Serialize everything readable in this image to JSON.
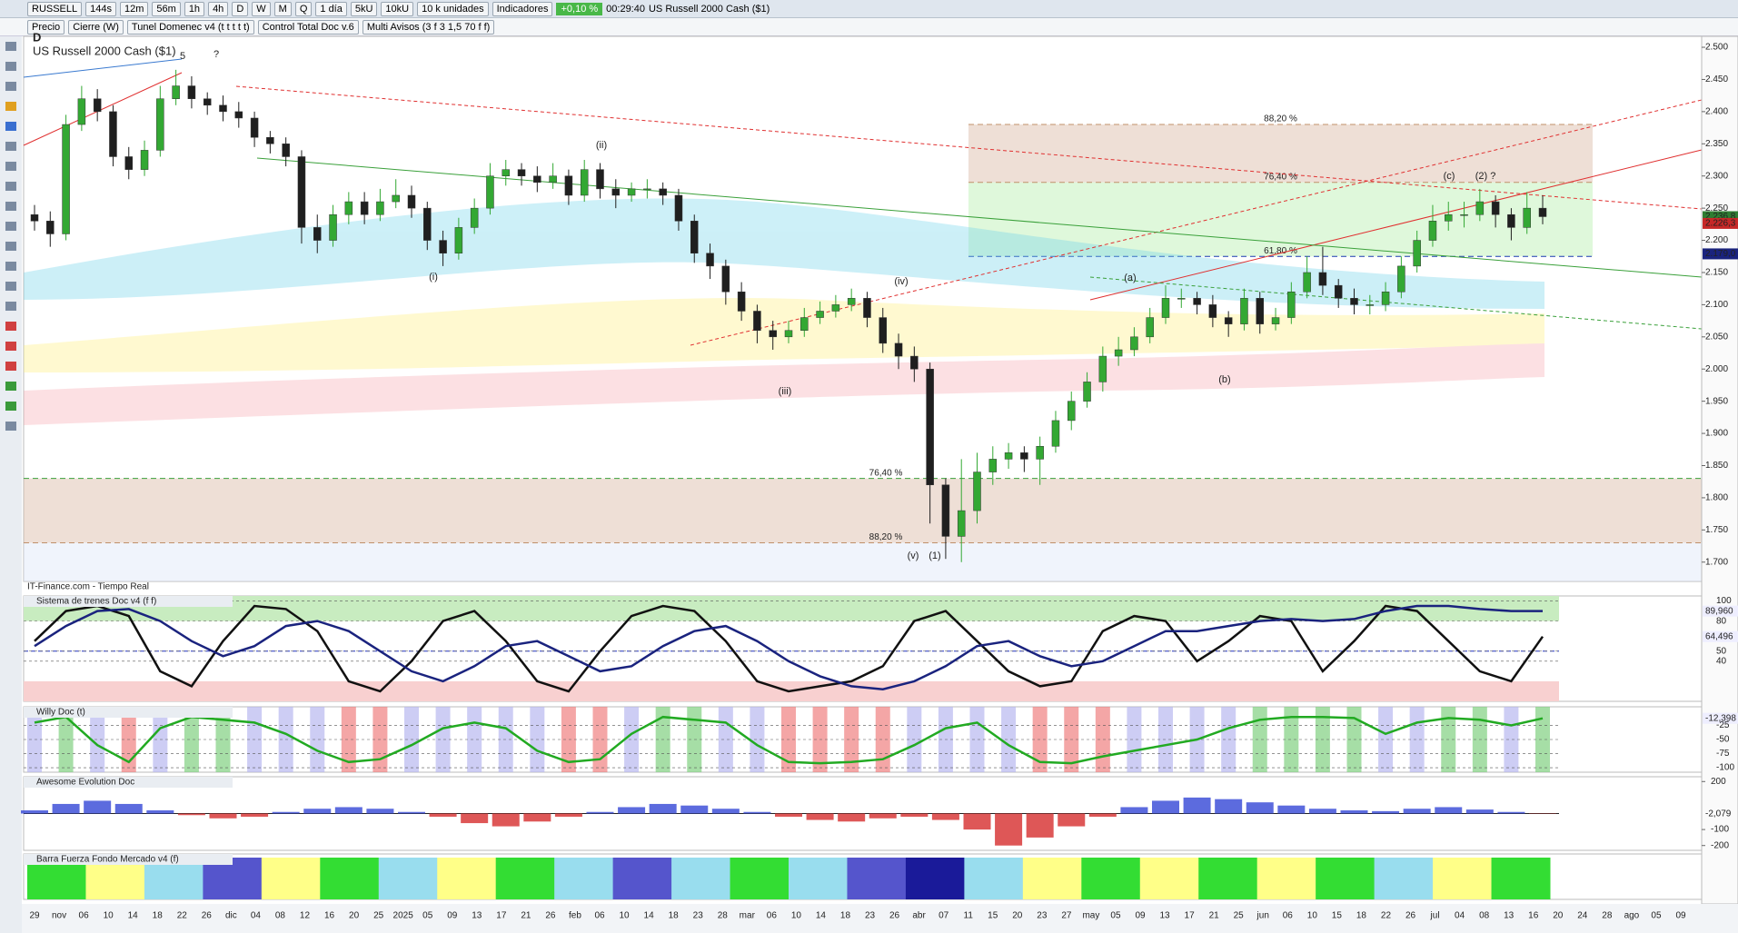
{
  "toolbar": {
    "symbol": "RUSSELL",
    "timeframes": [
      "144s",
      "12m",
      "56m",
      "1h",
      "4h",
      "D",
      "W",
      "M",
      "Q"
    ],
    "period": "1 día",
    "units": [
      "5kU",
      "10kU"
    ],
    "units_menu": "10 k unidades",
    "indicators": "Indicadores",
    "change": "+0,10 %",
    "time": "00:29:40",
    "instrument": "US Russell 2000 Cash ($1)"
  },
  "legend_bar": [
    "Precio",
    "Cierre (W)",
    "Tunel Domenec v4 (t t t t t)",
    "Control Total Doc v.6",
    "Multi Avisos (3 f 3 1,5 70 f f)"
  ],
  "chart_data": [
    {
      "type": "candlestick",
      "period": "D",
      "title": "US Russell 2000 Cash ($1)",
      "source": "IT-Finance.com - Tiempo Real",
      "up_color": "#33a833",
      "down_color": "#1f1f1f",
      "candles": [
        [
          2240,
          2255,
          2215,
          2230
        ],
        [
          2230,
          2245,
          2190,
          2210
        ],
        [
          2210,
          2395,
          2200,
          2380
        ],
        [
          2380,
          2440,
          2370,
          2420
        ],
        [
          2420,
          2435,
          2385,
          2400
        ],
        [
          2400,
          2410,
          2315,
          2330
        ],
        [
          2330,
          2345,
          2295,
          2310
        ],
        [
          2310,
          2355,
          2300,
          2340
        ],
        [
          2340,
          2440,
          2330,
          2420
        ],
        [
          2420,
          2465,
          2410,
          2440
        ],
        [
          2440,
          2455,
          2405,
          2420
        ],
        [
          2420,
          2430,
          2395,
          2410
        ],
        [
          2410,
          2425,
          2385,
          2400
        ],
        [
          2400,
          2415,
          2375,
          2390
        ],
        [
          2390,
          2400,
          2345,
          2360
        ],
        [
          2360,
          2370,
          2335,
          2350
        ],
        [
          2350,
          2360,
          2315,
          2330
        ],
        [
          2330,
          2340,
          2195,
          2220
        ],
        [
          2220,
          2240,
          2180,
          2200
        ],
        [
          2200,
          2255,
          2190,
          2240
        ],
        [
          2240,
          2275,
          2225,
          2260
        ],
        [
          2260,
          2275,
          2225,
          2240
        ],
        [
          2240,
          2280,
          2230,
          2260
        ],
        [
          2260,
          2295,
          2250,
          2270
        ],
        [
          2270,
          2285,
          2235,
          2250
        ],
        [
          2250,
          2260,
          2185,
          2200
        ],
        [
          2200,
          2215,
          2160,
          2180
        ],
        [
          2180,
          2235,
          2170,
          2220
        ],
        [
          2220,
          2265,
          2210,
          2250
        ],
        [
          2250,
          2320,
          2240,
          2300
        ],
        [
          2300,
          2325,
          2285,
          2310
        ],
        [
          2310,
          2320,
          2285,
          2300
        ],
        [
          2300,
          2315,
          2275,
          2290
        ],
        [
          2290,
          2320,
          2280,
          2300
        ],
        [
          2300,
          2310,
          2255,
          2270
        ],
        [
          2270,
          2325,
          2260,
          2310
        ],
        [
          2310,
          2320,
          2265,
          2280
        ],
        [
          2280,
          2295,
          2250,
          2270
        ],
        [
          2270,
          2290,
          2260,
          2280
        ],
        [
          2280,
          2295,
          2265,
          2280
        ],
        [
          2280,
          2290,
          2255,
          2270
        ],
        [
          2270,
          2280,
          2215,
          2230
        ],
        [
          2230,
          2240,
          2165,
          2180
        ],
        [
          2180,
          2195,
          2140,
          2160
        ],
        [
          2160,
          2170,
          2100,
          2120
        ],
        [
          2120,
          2135,
          2075,
          2090
        ],
        [
          2090,
          2100,
          2040,
          2060
        ],
        [
          2060,
          2075,
          2030,
          2050
        ],
        [
          2050,
          2075,
          2040,
          2060
        ],
        [
          2060,
          2095,
          2050,
          2080
        ],
        [
          2080,
          2105,
          2070,
          2090
        ],
        [
          2090,
          2115,
          2080,
          2100
        ],
        [
          2100,
          2125,
          2090,
          2110
        ],
        [
          2110,
          2120,
          2065,
          2080
        ],
        [
          2080,
          2095,
          2025,
          2040
        ],
        [
          2040,
          2055,
          2000,
          2020
        ],
        [
          2020,
          2035,
          1980,
          2000
        ],
        [
          2000,
          2010,
          1760,
          1820
        ],
        [
          1820,
          1830,
          1705,
          1740
        ],
        [
          1740,
          1860,
          1700,
          1780
        ],
        [
          1780,
          1870,
          1760,
          1840
        ],
        [
          1840,
          1880,
          1820,
          1860
        ],
        [
          1860,
          1885,
          1845,
          1870
        ],
        [
          1870,
          1880,
          1840,
          1860
        ],
        [
          1860,
          1895,
          1820,
          1880
        ],
        [
          1880,
          1935,
          1870,
          1920
        ],
        [
          1920,
          1965,
          1905,
          1950
        ],
        [
          1950,
          1995,
          1940,
          1980
        ],
        [
          1980,
          2035,
          1965,
          2020
        ],
        [
          2020,
          2050,
          2005,
          2030
        ],
        [
          2030,
          2065,
          2020,
          2050
        ],
        [
          2050,
          2095,
          2040,
          2080
        ],
        [
          2080,
          2130,
          2070,
          2110
        ],
        [
          2110,
          2125,
          2095,
          2110
        ],
        [
          2110,
          2120,
          2085,
          2100
        ],
        [
          2100,
          2115,
          2065,
          2080
        ],
        [
          2080,
          2090,
          2050,
          2070
        ],
        [
          2070,
          2125,
          2060,
          2110
        ],
        [
          2110,
          2120,
          2055,
          2070
        ],
        [
          2070,
          2095,
          2060,
          2080
        ],
        [
          2080,
          2135,
          2070,
          2120
        ],
        [
          2120,
          2175,
          2110,
          2150
        ],
        [
          2150,
          2190,
          2115,
          2130
        ],
        [
          2130,
          2140,
          2095,
          2110
        ],
        [
          2110,
          2125,
          2085,
          2100
        ],
        [
          2100,
          2115,
          2085,
          2100
        ],
        [
          2100,
          2135,
          2090,
          2120
        ],
        [
          2120,
          2175,
          2110,
          2160
        ],
        [
          2160,
          2215,
          2150,
          2200
        ],
        [
          2200,
          2255,
          2190,
          2230
        ],
        [
          2230,
          2260,
          2215,
          2240
        ],
        [
          2240,
          2260,
          2220,
          2240
        ],
        [
          2240,
          2280,
          2230,
          2260
        ],
        [
          2260,
          2270,
          2220,
          2240
        ],
        [
          2240,
          2250,
          2200,
          2220
        ],
        [
          2220,
          2275,
          2210,
          2250
        ],
        [
          2250,
          2270,
          2225,
          2236.8
        ]
      ],
      "ylim": [
        1670,
        2517
      ],
      "yticks": [
        {
          "value": 2500,
          "label": "2.500"
        },
        {
          "value": 2450,
          "label": "2.450"
        },
        {
          "value": 2400,
          "label": "2.400"
        },
        {
          "value": 2350,
          "label": "2.350"
        },
        {
          "value": 2300,
          "label": "2.300"
        },
        {
          "value": 2250,
          "label": "2.250"
        },
        {
          "value": 2200,
          "label": "2.200"
        },
        {
          "value": 2150,
          "label": "2.150"
        },
        {
          "value": 2100,
          "label": "2.100"
        },
        {
          "value": 2050,
          "label": "2.050"
        },
        {
          "value": 2000,
          "label": "2.000"
        },
        {
          "value": 1950,
          "label": "1.950"
        },
        {
          "value": 1900,
          "label": "1.900"
        },
        {
          "value": 1850,
          "label": "1.850"
        },
        {
          "value": 1800,
          "label": "1.800"
        },
        {
          "value": 1750,
          "label": "1.750"
        },
        {
          "value": 1700,
          "label": "1.700"
        }
      ],
      "price_labels": [
        {
          "value": 2236.8,
          "label": "2.236,8",
          "color": "#2e7d32"
        },
        {
          "value": 2226.3,
          "label": "2.226,3",
          "color": "#c62828"
        },
        {
          "value": 2179,
          "label": "2.179,0",
          "color": "#1a237e"
        }
      ],
      "fib_upper": [
        {
          "ratio": 88.2,
          "label": "88,20 %",
          "price": 2380
        },
        {
          "ratio": 76.4,
          "label": "76,40 %",
          "price": 2290
        },
        {
          "ratio": 61.8,
          "label": "61,80 %",
          "price": 2175
        }
      ],
      "fib_lower": [
        {
          "ratio": 76.4,
          "label": "76,40 %",
          "price": 1830
        },
        {
          "ratio": 88.2,
          "label": "88,20 %",
          "price": 1730
        }
      ],
      "wave_labels": [
        "5",
        "?",
        "(i)",
        "(ii)",
        "(iii)",
        "(iv)",
        "(v)",
        "(1)",
        "(a)",
        "(b)",
        "(c)",
        "(2) ?"
      ]
    },
    {
      "type": "line",
      "title": "Sistema de trenes Doc v4 (f f)",
      "ylim": [
        0,
        105
      ],
      "yticks": [
        100,
        80,
        50,
        40
      ],
      "overbought": 80,
      "oversold": 20,
      "midline": 50,
      "series": [
        {
          "color": "#111111",
          "values": [
            60,
            90,
            95,
            85,
            30,
            15,
            60,
            95,
            92,
            70,
            20,
            10,
            40,
            80,
            90,
            60,
            20,
            10,
            50,
            85,
            95,
            90,
            60,
            20,
            10,
            15,
            20,
            35,
            80,
            90,
            60,
            30,
            15,
            20,
            70,
            85,
            80,
            40,
            60,
            85,
            80,
            30,
            60,
            95,
            90,
            60,
            30,
            20,
            64.496
          ],
          "last_label": "64,496"
        },
        {
          "color": "#1a237e",
          "values": [
            55,
            75,
            90,
            92,
            80,
            60,
            45,
            55,
            75,
            80,
            70,
            50,
            30,
            20,
            35,
            55,
            60,
            45,
            30,
            35,
            55,
            70,
            75,
            60,
            40,
            25,
            15,
            12,
            20,
            35,
            55,
            60,
            45,
            35,
            40,
            55,
            70,
            70,
            75,
            80,
            82,
            80,
            82,
            90,
            95,
            95,
            92,
            90,
            89.96
          ],
          "last_label": "89,960"
        }
      ]
    },
    {
      "type": "line",
      "title": "Willy Doc (t)",
      "ylim": [
        -108,
        8
      ],
      "yticks": [
        -25,
        -50,
        -75,
        -100
      ],
      "series": [
        {
          "color": "#22aa22",
          "values": [
            -20,
            -10,
            -60,
            -90,
            -30,
            -10,
            -15,
            -20,
            -40,
            -70,
            -90,
            -85,
            -60,
            -30,
            -20,
            -30,
            -70,
            -90,
            -85,
            -40,
            -10,
            -15,
            -20,
            -60,
            -90,
            -92,
            -90,
            -85,
            -60,
            -30,
            -20,
            -60,
            -90,
            -92,
            -80,
            -70,
            -60,
            -50,
            -30,
            -15,
            -10,
            -10,
            -12,
            -40,
            -20,
            -12,
            -15,
            -25,
            -12.398
          ],
          "last_label": "-12,398"
        }
      ]
    },
    {
      "type": "histogram",
      "title": "Awesome Evolution Doc",
      "ylim": [
        -230,
        230
      ],
      "yticks": [
        200,
        -100,
        -200
      ],
      "up_color": "#3f51d8",
      "down_color": "#d83a3a",
      "values": [
        20,
        60,
        80,
        60,
        20,
        -10,
        -30,
        -20,
        10,
        30,
        40,
        30,
        10,
        -20,
        -60,
        -80,
        -50,
        -20,
        10,
        40,
        60,
        50,
        30,
        10,
        -20,
        -40,
        -50,
        -30,
        -20,
        -40,
        -100,
        -200,
        -150,
        -80,
        -20,
        40,
        80,
        100,
        90,
        70,
        50,
        30,
        20,
        15,
        30,
        40,
        25,
        10,
        -2.079
      ],
      "last_label": "-2,079"
    },
    {
      "type": "state_bar",
      "title": "Barra Fuerza Fondo Mercado v4 (f)",
      "colors": [
        "#33dd33",
        "#ffff88",
        "#99ddee",
        "#5555cc",
        "#ffff88",
        "#33dd33",
        "#99ddee",
        "#ffff88",
        "#33dd33",
        "#99ddee",
        "#5555cc",
        "#99ddee",
        "#33dd33",
        "#99ddee",
        "#5555cc",
        "#1a1a99",
        "#99ddee",
        "#ffff88",
        "#33dd33",
        "#ffff88",
        "#33dd33",
        "#ffff88",
        "#33dd33",
        "#99ddee",
        "#ffff88",
        "#33dd33"
      ]
    }
  ],
  "time_axis": [
    "29",
    "nov",
    "06",
    "10",
    "14",
    "18",
    "22",
    "26",
    "dic",
    "04",
    "08",
    "12",
    "16",
    "20",
    "25",
    "2025",
    "05",
    "09",
    "13",
    "17",
    "21",
    "26",
    "feb",
    "06",
    "10",
    "14",
    "18",
    "23",
    "28",
    "mar",
    "06",
    "10",
    "14",
    "18",
    "23",
    "26",
    "abr",
    "07",
    "11",
    "15",
    "20",
    "23",
    "27",
    "may",
    "05",
    "09",
    "13",
    "17",
    "21",
    "25",
    "jun",
    "06",
    "10",
    "15",
    "18",
    "22",
    "26",
    "jul",
    "04",
    "08",
    "13",
    "16",
    "20",
    "24",
    "28",
    "ago",
    "05",
    "09"
  ]
}
